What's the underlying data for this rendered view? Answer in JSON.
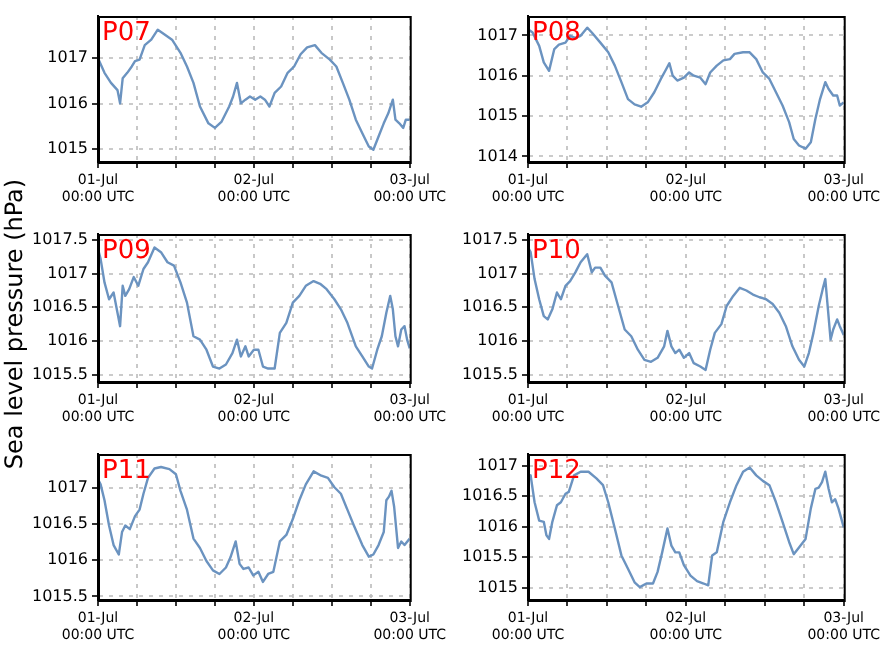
{
  "chart_data": [
    {
      "type": "line",
      "title": "P07",
      "color": "#6b93c0",
      "marker": "none",
      "grid": true,
      "xlim": [
        "--07-01T00:00",
        "--07-03T00:00"
      ],
      "xticks": [
        {
          "value": "--07-01T00:00",
          "label": "01-Jul\n00:00 UTC"
        },
        {
          "value": "--07-01T06:00",
          "label": null
        },
        {
          "value": "--07-01T12:00",
          "label": null
        },
        {
          "value": "--07-01T18:00",
          "label": null
        },
        {
          "value": "--07-02T00:00",
          "label": "02-Jul\n00:00 UTC"
        },
        {
          "value": "--07-02T06:00",
          "label": null
        },
        {
          "value": "--07-02T12:00",
          "label": null
        },
        {
          "value": "--07-02T18:00",
          "label": null
        },
        {
          "value": "--07-03T00:00",
          "label": "03-Jul\n00:00 UTC"
        }
      ],
      "ylim": [
        1014.72,
        1017.93
      ],
      "yticks": [
        1015,
        1016,
        1017
      ],
      "x": [
        "--07-01T00:00",
        "--07-01T01:00",
        "--07-01T02:00",
        "--07-01T03:00",
        "--07-01T03:24",
        "--07-01T03:48",
        "--07-01T04:30",
        "--07-01T05:12",
        "--07-01T05:42",
        "--07-01T06:24",
        "--07-01T07:12",
        "--07-01T08:12",
        "--07-01T09:12",
        "--07-01T10:12",
        "--07-01T11:24",
        "--07-01T12:42",
        "--07-01T13:42",
        "--07-01T14:42",
        "--07-01T15:42",
        "--07-01T17:00",
        "--07-01T18:00",
        "--07-01T19:00",
        "--07-01T20:12",
        "--07-01T20:48",
        "--07-01T21:24",
        "--07-01T22:00",
        "--07-01T22:42",
        "--07-01T23:24",
        "--07-02T00:12",
        "--07-02T01:00",
        "--07-02T01:42",
        "--07-02T02:24",
        "--07-02T03:12",
        "--07-02T04:12",
        "--07-02T05:12",
        "--07-02T06:12",
        "--07-02T07:12",
        "--07-02T08:12",
        "--07-02T09:24",
        "--07-02T10:24",
        "--07-02T11:42",
        "--07-02T12:42",
        "--07-02T13:42",
        "--07-02T14:42",
        "--07-02T15:42",
        "--07-02T16:42",
        "--07-02T17:42",
        "--07-02T18:24",
        "--07-02T19:12",
        "--07-02T20:00",
        "--07-02T20:42",
        "--07-02T21:24",
        "--07-02T21:48",
        "--07-02T22:24",
        "--07-02T23:00",
        "--07-02T23:24",
        "--07-03T00:00"
      ],
      "values": [
        1017.0,
        1016.68,
        1016.46,
        1016.3,
        1016.01,
        1016.56,
        1016.68,
        1016.82,
        1016.94,
        1016.97,
        1017.29,
        1017.41,
        1017.63,
        1017.53,
        1017.41,
        1017.12,
        1016.82,
        1016.46,
        1015.94,
        1015.57,
        1015.47,
        1015.6,
        1015.94,
        1016.16,
        1016.46,
        1016.01,
        1016.09,
        1016.16,
        1016.09,
        1016.16,
        1016.09,
        1015.94,
        1016.24,
        1016.38,
        1016.68,
        1016.82,
        1017.09,
        1017.24,
        1017.29,
        1017.12,
        1016.97,
        1016.82,
        1016.46,
        1016.09,
        1015.65,
        1015.35,
        1015.06,
        1014.99,
        1015.28,
        1015.57,
        1015.79,
        1016.09,
        1015.65,
        1015.57,
        1015.47,
        1015.65,
        1015.65
      ]
    },
    {
      "type": "line",
      "title": "P08",
      "color": "#6b93c0",
      "marker": "none",
      "grid": true,
      "xlim": [
        "--07-01T00:00",
        "--07-03T00:00"
      ],
      "xticks": [
        {
          "value": "--07-01T00:00",
          "label": "01-Jul\n00:00 UTC"
        },
        {
          "value": "--07-01T06:00",
          "label": null
        },
        {
          "value": "--07-01T12:00",
          "label": null
        },
        {
          "value": "--07-01T18:00",
          "label": null
        },
        {
          "value": "--07-02T00:00",
          "label": "02-Jul\n00:00 UTC"
        },
        {
          "value": "--07-02T06:00",
          "label": null
        },
        {
          "value": "--07-02T12:00",
          "label": null
        },
        {
          "value": "--07-02T18:00",
          "label": null
        },
        {
          "value": "--07-03T00:00",
          "label": "03-Jul\n00:00 UTC"
        }
      ],
      "ylim": [
        1013.86,
        1017.48
      ],
      "yticks": [
        1014,
        1015,
        1016,
        1017
      ],
      "x": [
        "--07-01T00:00",
        "--07-01T00:42",
        "--07-01T01:42",
        "--07-01T02:24",
        "--07-01T03:12",
        "--07-01T04:00",
        "--07-01T04:42",
        "--07-01T05:42",
        "--07-01T06:24",
        "--07-01T07:12",
        "--07-01T08:00",
        "--07-01T09:00",
        "--07-01T09:42",
        "--07-01T11:00",
        "--07-01T12:12",
        "--07-01T13:12",
        "--07-01T14:12",
        "--07-01T15:12",
        "--07-01T16:12",
        "--07-01T17:12",
        "--07-01T18:12",
        "--07-01T19:12",
        "--07-01T20:12",
        "--07-01T21:00",
        "--07-01T21:30",
        "--07-01T22:00",
        "--07-01T22:42",
        "--07-01T23:42",
        "--07-02T00:30",
        "--07-02T01:12",
        "--07-02T02:12",
        "--07-02T03:00",
        "--07-02T03:42",
        "--07-02T04:42",
        "--07-02T05:42",
        "--07-02T06:42",
        "--07-02T07:24",
        "--07-02T08:42",
        "--07-02T09:42",
        "--07-02T10:42",
        "--07-02T11:42",
        "--07-02T12:42",
        "--07-02T13:42",
        "--07-02T14:42",
        "--07-02T15:42",
        "--07-02T16:24",
        "--07-02T17:12",
        "--07-02T18:12",
        "--07-02T19:00",
        "--07-02T19:42",
        "--07-02T20:24",
        "--07-02T21:12",
        "--07-02T21:42",
        "--07-02T22:24",
        "--07-02T23:00",
        "--07-02T23:24",
        "--07-03T00:00"
      ],
      "values": [
        1017.15,
        1017.07,
        1016.74,
        1016.33,
        1016.12,
        1016.66,
        1016.77,
        1016.82,
        1016.99,
        1016.94,
        1016.99,
        1017.19,
        1017.07,
        1016.82,
        1016.58,
        1016.25,
        1015.84,
        1015.42,
        1015.29,
        1015.23,
        1015.34,
        1015.59,
        1015.92,
        1016.16,
        1016.31,
        1016.0,
        1015.88,
        1015.95,
        1016.08,
        1016.0,
        1015.95,
        1015.79,
        1016.08,
        1016.25,
        1016.38,
        1016.41,
        1016.54,
        1016.58,
        1016.58,
        1016.41,
        1016.08,
        1015.92,
        1015.59,
        1015.26,
        1014.85,
        1014.43,
        1014.27,
        1014.19,
        1014.35,
        1014.93,
        1015.42,
        1015.84,
        1015.67,
        1015.51,
        1015.51,
        1015.26,
        1015.34
      ]
    },
    {
      "type": "line",
      "title": "P09",
      "ylabel": "Sea level pressure (hPa)",
      "color": "#6b93c0",
      "marker": "none",
      "grid": true,
      "xlim": [
        "--07-01T00:00",
        "--07-03T00:00"
      ],
      "xticks": [
        {
          "value": "--07-01T00:00",
          "label": "01-Jul\n00:00 UTC"
        },
        {
          "value": "--07-01T06:00",
          "label": null
        },
        {
          "value": "--07-01T12:00",
          "label": null
        },
        {
          "value": "--07-01T18:00",
          "label": null
        },
        {
          "value": "--07-02T00:00",
          "label": "02-Jul\n00:00 UTC"
        },
        {
          "value": "--07-02T06:00",
          "label": null
        },
        {
          "value": "--07-02T12:00",
          "label": null
        },
        {
          "value": "--07-02T18:00",
          "label": null
        },
        {
          "value": "--07-03T00:00",
          "label": "03-Jul\n00:00 UTC"
        }
      ],
      "ylim": [
        1015.39,
        1017.59
      ],
      "yticks": [
        1015.5,
        1016,
        1016.5,
        1017,
        1017.5
      ],
      "x": [
        "--07-01T00:00",
        "--07-01T00:24",
        "--07-01T01:00",
        "--07-01T01:42",
        "--07-01T02:24",
        "--07-01T03:00",
        "--07-01T03:24",
        "--07-01T03:48",
        "--07-01T04:12",
        "--07-01T04:48",
        "--07-01T05:30",
        "--07-01T06:12",
        "--07-01T07:00",
        "--07-01T07:42",
        "--07-01T08:42",
        "--07-01T09:42",
        "--07-01T10:42",
        "--07-01T11:42",
        "--07-01T12:42",
        "--07-01T13:42",
        "--07-01T14:42",
        "--07-01T15:42",
        "--07-01T16:42",
        "--07-01T17:42",
        "--07-01T18:42",
        "--07-01T19:42",
        "--07-01T20:42",
        "--07-01T21:24",
        "--07-01T22:00",
        "--07-01T22:42",
        "--07-01T23:12",
        "--07-02T00:00",
        "--07-02T00:42",
        "--07-02T01:24",
        "--07-02T02:12",
        "--07-02T03:12",
        "--07-02T04:00",
        "--07-02T05:00",
        "--07-02T06:00",
        "--07-02T07:00",
        "--07-02T08:00",
        "--07-02T09:12",
        "--07-02T10:12",
        "--07-02T11:12",
        "--07-02T12:24",
        "--07-02T13:24",
        "--07-02T14:24",
        "--07-02T15:42",
        "--07-02T16:42",
        "--07-02T17:42",
        "--07-02T18:12",
        "--07-02T19:00",
        "--07-02T19:42",
        "--07-02T20:24",
        "--07-02T21:00",
        "--07-02T21:24",
        "--07-02T21:48",
        "--07-02T22:12",
        "--07-02T22:42",
        "--07-02T23:12",
        "--07-02T23:36",
        "--07-03T00:00"
      ],
      "values": [
        1017.37,
        1017.22,
        1016.87,
        1016.62,
        1016.72,
        1016.42,
        1016.22,
        1016.82,
        1016.67,
        1016.77,
        1016.95,
        1016.82,
        1017.07,
        1017.17,
        1017.39,
        1017.32,
        1017.17,
        1017.12,
        1016.87,
        1016.57,
        1016.07,
        1016.02,
        1015.87,
        1015.62,
        1015.59,
        1015.65,
        1015.82,
        1016.02,
        1015.77,
        1015.92,
        1015.77,
        1015.87,
        1015.87,
        1015.62,
        1015.59,
        1015.59,
        1016.12,
        1016.27,
        1016.57,
        1016.67,
        1016.82,
        1016.89,
        1016.85,
        1016.77,
        1016.62,
        1016.47,
        1016.27,
        1015.92,
        1015.77,
        1015.62,
        1015.59,
        1015.87,
        1016.07,
        1016.42,
        1016.67,
        1016.47,
        1016.07,
        1015.92,
        1016.17,
        1016.22,
        1016.02,
        1015.89
      ]
    },
    {
      "type": "line",
      "title": "P10",
      "color": "#6b93c0",
      "marker": "none",
      "grid": true,
      "xlim": [
        "--07-01T00:00",
        "--07-03T00:00"
      ],
      "xticks": [
        {
          "value": "--07-01T00:00",
          "label": "01-Jul\n00:00 UTC"
        },
        {
          "value": "--07-01T06:00",
          "label": null
        },
        {
          "value": "--07-01T12:00",
          "label": null
        },
        {
          "value": "--07-01T18:00",
          "label": null
        },
        {
          "value": "--07-02T00:00",
          "label": "02-Jul\n00:00 UTC"
        },
        {
          "value": "--07-02T06:00",
          "label": null
        },
        {
          "value": "--07-02T12:00",
          "label": null
        },
        {
          "value": "--07-02T18:00",
          "label": null
        },
        {
          "value": "--07-03T00:00",
          "label": "03-Jul\n00:00 UTC"
        }
      ],
      "ylim": [
        1015.39,
        1017.59
      ],
      "yticks": [
        1015.5,
        1016,
        1016.5,
        1017,
        1017.5
      ],
      "x": [
        "--07-01T00:00",
        "--07-01T00:24",
        "--07-01T01:00",
        "--07-01T01:42",
        "--07-01T02:24",
        "--07-01T03:00",
        "--07-01T03:42",
        "--07-01T04:24",
        "--07-01T05:00",
        "--07-01T05:42",
        "--07-01T06:24",
        "--07-01T07:12",
        "--07-01T08:00",
        "--07-01T09:00",
        "--07-01T09:42",
        "--07-01T10:12",
        "--07-01T11:00",
        "--07-01T11:42",
        "--07-01T12:42",
        "--07-01T13:42",
        "--07-01T14:42",
        "--07-01T15:42",
        "--07-01T16:42",
        "--07-01T17:42",
        "--07-01T18:42",
        "--07-01T19:42",
        "--07-01T20:42",
        "--07-01T21:12",
        "--07-01T21:48",
        "--07-01T22:24",
        "--07-01T23:00",
        "--07-01T23:42",
        "--07-02T00:30",
        "--07-02T01:12",
        "--07-02T02:12",
        "--07-02T03:00",
        "--07-02T03:42",
        "--07-02T04:24",
        "--07-02T05:24",
        "--07-02T06:12",
        "--07-02T07:12",
        "--07-02T08:12",
        "--07-02T09:12",
        "--07-02T10:12",
        "--07-02T11:12",
        "--07-02T12:12",
        "--07-02T13:12",
        "--07-02T14:12",
        "--07-02T15:12",
        "--07-02T16:12",
        "--07-02T17:12",
        "--07-02T18:00",
        "--07-02T18:42",
        "--07-02T19:24",
        "--07-02T20:12",
        "--07-02T20:48",
        "--07-02T21:12",
        "--07-02T21:36",
        "--07-02T22:00",
        "--07-02T22:24",
        "--07-02T23:00",
        "--07-02T23:24",
        "--07-03T00:00"
      ],
      "values": [
        1017.39,
        1017.32,
        1016.92,
        1016.62,
        1016.37,
        1016.32,
        1016.47,
        1016.72,
        1016.62,
        1016.82,
        1016.89,
        1017.02,
        1017.17,
        1017.29,
        1017.02,
        1017.09,
        1017.09,
        1016.97,
        1016.87,
        1016.52,
        1016.17,
        1016.07,
        1015.87,
        1015.72,
        1015.69,
        1015.75,
        1015.92,
        1016.15,
        1015.92,
        1015.82,
        1015.87,
        1015.75,
        1015.82,
        1015.67,
        1015.62,
        1015.57,
        1015.87,
        1016.12,
        1016.25,
        1016.52,
        1016.67,
        1016.79,
        1016.75,
        1016.69,
        1016.65,
        1016.62,
        1016.55,
        1016.42,
        1016.22,
        1015.92,
        1015.72,
        1015.62,
        1015.82,
        1016.12,
        1016.52,
        1016.77,
        1016.92,
        1016.47,
        1016.02,
        1016.17,
        1016.32,
        1016.22,
        1016.09
      ]
    },
    {
      "type": "line",
      "title": "P11",
      "color": "#6b93c0",
      "marker": "none",
      "grid": true,
      "xlim": [
        "--07-01T00:00",
        "--07-03T00:00"
      ],
      "xticks": [
        {
          "value": "--07-01T00:00",
          "label": "01-Jul\n00:00 UTC"
        },
        {
          "value": "--07-01T06:00",
          "label": null
        },
        {
          "value": "--07-01T12:00",
          "label": null
        },
        {
          "value": "--07-01T18:00",
          "label": null
        },
        {
          "value": "--07-02T00:00",
          "label": "02-Jul\n00:00 UTC"
        },
        {
          "value": "--07-02T06:00",
          "label": null
        },
        {
          "value": "--07-02T12:00",
          "label": null
        },
        {
          "value": "--07-02T18:00",
          "label": null
        },
        {
          "value": "--07-03T00:00",
          "label": "03-Jul\n00:00 UTC"
        }
      ],
      "ylim": [
        1015.45,
        1017.47
      ],
      "yticks": [
        1015.5,
        1016,
        1016.5,
        1017
      ],
      "x": [
        "--07-01T00:00",
        "--07-01T00:24",
        "--07-01T01:00",
        "--07-01T01:42",
        "--07-01T02:24",
        "--07-01T03:12",
        "--07-01T03:42",
        "--07-01T04:12",
        "--07-01T04:54",
        "--07-01T05:42",
        "--07-01T06:24",
        "--07-01T07:00",
        "--07-01T07:42",
        "--07-01T08:42",
        "--07-01T09:42",
        "--07-01T11:00",
        "--07-01T12:00",
        "--07-01T12:42",
        "--07-01T13:42",
        "--07-01T14:42",
        "--07-01T15:42",
        "--07-01T16:42",
        "--07-01T17:42",
        "--07-01T18:42",
        "--07-01T19:42",
        "--07-01T20:24",
        "--07-01T21:12",
        "--07-01T21:48",
        "--07-01T22:24",
        "--07-01T23:12",
        "--07-01T23:54",
        "--07-02T00:42",
        "--07-02T01:24",
        "--07-02T02:12",
        "--07-02T03:00",
        "--07-02T04:00",
        "--07-02T05:00",
        "--07-02T06:00",
        "--07-02T07:00",
        "--07-02T08:00",
        "--07-02T09:12",
        "--07-02T10:24",
        "--07-02T11:24",
        "--07-02T12:24",
        "--07-02T13:24",
        "--07-02T14:24",
        "--07-02T15:24",
        "--07-02T16:42",
        "--07-02T17:42",
        "--07-02T18:24",
        "--07-02T19:12",
        "--07-02T20:00",
        "--07-02T20:24",
        "--07-02T20:48",
        "--07-02T21:12",
        "--07-02T21:36",
        "--07-02T22:12",
        "--07-02T22:42",
        "--07-02T23:12",
        "--07-03T00:00"
      ],
      "values": [
        1017.12,
        1017.05,
        1016.83,
        1016.48,
        1016.21,
        1016.08,
        1016.39,
        1016.48,
        1016.43,
        1016.61,
        1016.7,
        1016.92,
        1017.14,
        1017.27,
        1017.29,
        1017.26,
        1017.19,
        1016.96,
        1016.7,
        1016.3,
        1016.17,
        1015.99,
        1015.86,
        1015.81,
        1015.9,
        1016.04,
        1016.26,
        1015.95,
        1015.88,
        1015.9,
        1015.79,
        1015.84,
        1015.7,
        1015.81,
        1015.84,
        1016.26,
        1016.35,
        1016.57,
        1016.83,
        1017.05,
        1017.23,
        1017.17,
        1017.14,
        1017.01,
        1016.92,
        1016.7,
        1016.48,
        1016.21,
        1016.05,
        1016.08,
        1016.21,
        1016.39,
        1016.83,
        1016.88,
        1016.96,
        1016.74,
        1016.17,
        1016.26,
        1016.21,
        1016.3
      ]
    },
    {
      "type": "line",
      "title": "P12",
      "color": "#6b93c0",
      "marker": "none",
      "grid": true,
      "xlim": [
        "--07-01T00:00",
        "--07-03T00:00"
      ],
      "xticks": [
        {
          "value": "--07-01T00:00",
          "label": "01-Jul\n00:00 UTC"
        },
        {
          "value": "--07-01T06:00",
          "label": null
        },
        {
          "value": "--07-01T12:00",
          "label": null
        },
        {
          "value": "--07-01T18:00",
          "label": null
        },
        {
          "value": "--07-02T00:00",
          "label": "02-Jul\n00:00 UTC"
        },
        {
          "value": "--07-02T06:00",
          "label": null
        },
        {
          "value": "--07-02T12:00",
          "label": null
        },
        {
          "value": "--07-02T18:00",
          "label": null
        },
        {
          "value": "--07-03T00:00",
          "label": "03-Jul\n00:00 UTC"
        }
      ],
      "ylim": [
        1014.8,
        1017.19
      ],
      "yticks": [
        1015,
        1015.5,
        1016,
        1016.5,
        1017
      ],
      "x": [
        "--07-01T00:00",
        "--07-01T00:24",
        "--07-01T01:00",
        "--07-01T01:42",
        "--07-01T02:24",
        "--07-01T02:48",
        "--07-01T03:12",
        "--07-01T03:42",
        "--07-01T04:24",
        "--07-01T05:00",
        "--07-01T05:42",
        "--07-01T06:12",
        "--07-01T07:00",
        "--07-01T08:00",
        "--07-01T09:12",
        "--07-01T10:24",
        "--07-01T11:24",
        "--07-01T12:12",
        "--07-01T13:12",
        "--07-01T14:12",
        "--07-01T15:12",
        "--07-01T16:12",
        "--07-01T17:00",
        "--07-01T18:00",
        "--07-01T19:00",
        "--07-01T19:42",
        "--07-01T20:24",
        "--07-01T21:12",
        "--07-01T21:48",
        "--07-01T22:24",
        "--07-01T23:00",
        "--07-01T23:42",
        "--07-02T00:42",
        "--07-02T01:42",
        "--07-02T02:42",
        "--07-02T03:24",
        "--07-02T04:00",
        "--07-02T04:42",
        "--07-02T05:42",
        "--07-02T06:42",
        "--07-02T07:42",
        "--07-02T08:42",
        "--07-02T09:42",
        "--07-02T10:42",
        "--07-02T11:42",
        "--07-02T12:42",
        "--07-02T13:42",
        "--07-02T14:42",
        "--07-02T15:42",
        "--07-02T16:24",
        "--07-02T17:12",
        "--07-02T18:12",
        "--07-02T19:00",
        "--07-02T19:42",
        "--07-02T20:12",
        "--07-02T20:42",
        "--07-02T21:12",
        "--07-02T21:42",
        "--07-02T22:12",
        "--07-02T22:42",
        "--07-02T23:12",
        "--07-03T00:00"
      ],
      "values": [
        1016.79,
        1016.84,
        1016.4,
        1016.1,
        1016.08,
        1015.86,
        1015.8,
        1016.08,
        1016.35,
        1016.4,
        1016.54,
        1016.57,
        1016.84,
        1016.9,
        1016.9,
        1016.79,
        1016.68,
        1016.4,
        1015.97,
        1015.53,
        1015.31,
        1015.09,
        1015.01,
        1015.07,
        1015.07,
        1015.26,
        1015.58,
        1015.97,
        1015.69,
        1015.58,
        1015.58,
        1015.37,
        1015.2,
        1015.11,
        1015.07,
        1015.04,
        1015.53,
        1015.58,
        1016.08,
        1016.4,
        1016.68,
        1016.9,
        1016.97,
        1016.84,
        1016.75,
        1016.68,
        1016.4,
        1016.08,
        1015.75,
        1015.55,
        1015.66,
        1015.8,
        1016.3,
        1016.62,
        1016.64,
        1016.73,
        1016.9,
        1016.62,
        1016.4,
        1016.45,
        1016.3,
        1015.99
      ]
    }
  ]
}
